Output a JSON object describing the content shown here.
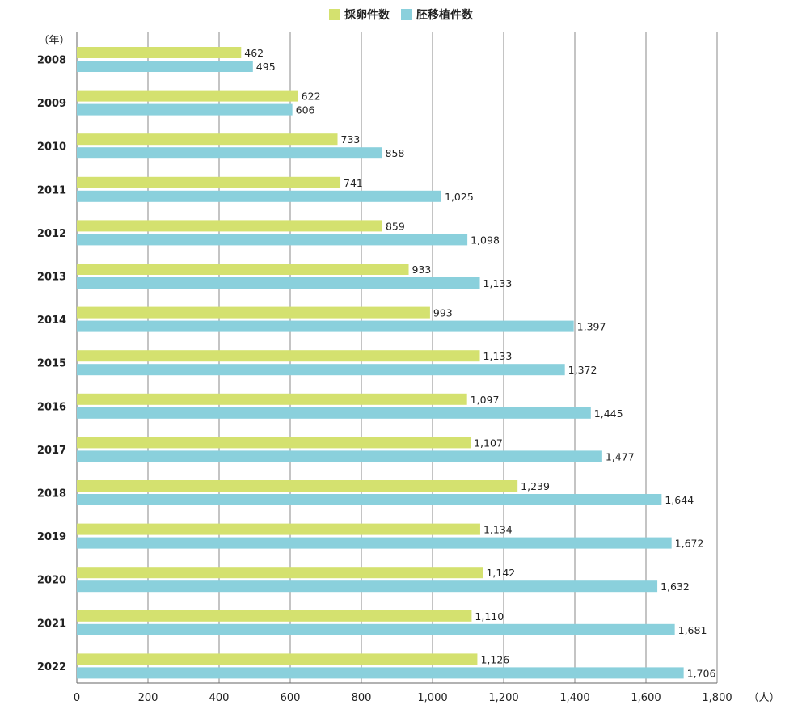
{
  "chart_data": {
    "type": "bar",
    "orientation": "horizontal",
    "categories": [
      "2008",
      "2009",
      "2010",
      "2011",
      "2012",
      "2013",
      "2014",
      "2015",
      "2016",
      "2017",
      "2018",
      "2019",
      "2020",
      "2021",
      "2022"
    ],
    "series": [
      {
        "name": "採卵件数",
        "color": "#d4e16f",
        "values": [
          462,
          622,
          733,
          741,
          859,
          933,
          993,
          1133,
          1097,
          1107,
          1239,
          1134,
          1142,
          1110,
          1126
        ],
        "labels": [
          "462",
          "622",
          "733",
          "741",
          "859",
          "933",
          "993",
          "1,133",
          "1,097",
          "1,107",
          "1,239",
          "1,134",
          "1,142",
          "1,110",
          "1,126"
        ]
      },
      {
        "name": "胚移植件数",
        "color": "#8ad0dc",
        "values": [
          495,
          606,
          858,
          1025,
          1098,
          1133,
          1397,
          1372,
          1445,
          1477,
          1644,
          1672,
          1632,
          1681,
          1706
        ],
        "labels": [
          "495",
          "606",
          "858",
          "1,025",
          "1,098",
          "1,133",
          "1,397",
          "1,372",
          "1,445",
          "1,477",
          "1,644",
          "1,672",
          "1,632",
          "1,681",
          "1,706"
        ]
      }
    ],
    "xlim": [
      0,
      1800
    ],
    "xticks": [
      0,
      200,
      400,
      600,
      800,
      1000,
      1200,
      1400,
      1600,
      1800
    ],
    "xtick_labels": [
      "0",
      "200",
      "400",
      "600",
      "800",
      "1,000",
      "1,200",
      "1,400",
      "1,600",
      "1,800"
    ],
    "xlabel": "（人）",
    "ylabel": "（年）",
    "grid": true,
    "legend_position": "top-center"
  }
}
